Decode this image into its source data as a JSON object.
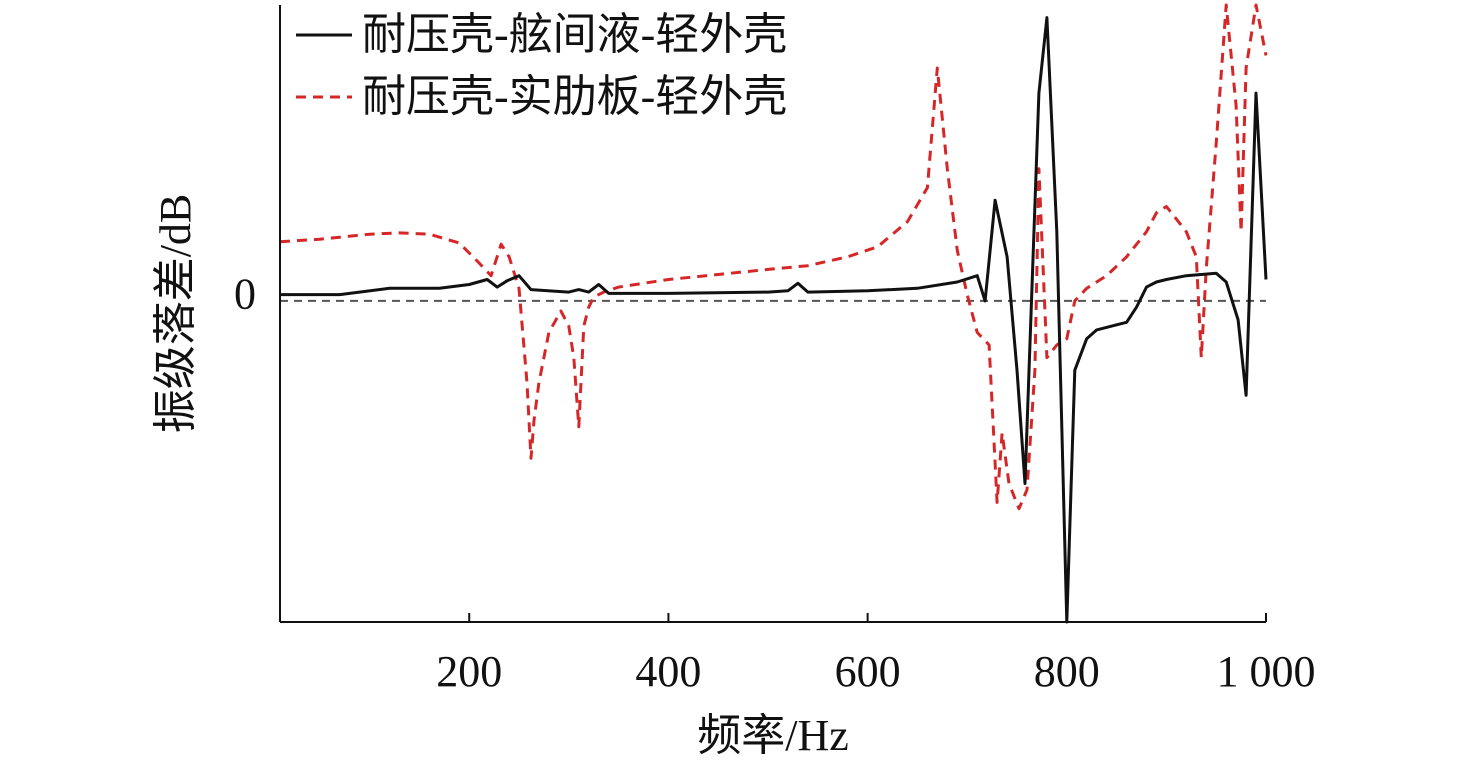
{
  "chart_data": {
    "type": "line",
    "title": "",
    "xlabel": "频率/Hz",
    "ylabel": "振级落差/dB",
    "xlim": [
      10,
      1000
    ],
    "ylim": [
      -26,
      23
    ],
    "x_ticks": [
      {
        "value": 200,
        "label": "200"
      },
      {
        "value": 400,
        "label": "400"
      },
      {
        "value": 600,
        "label": "600"
      },
      {
        "value": 800,
        "label": "800"
      },
      {
        "value": 1000,
        "label": "1 000"
      }
    ],
    "y_ticks": [
      {
        "value": 0,
        "label": "0"
      }
    ],
    "reference_line": {
      "y": -0.5,
      "style": "dashed",
      "color": "#555555"
    },
    "legend": {
      "position": "top-left"
    },
    "grid": false,
    "series": [
      {
        "name": "耐压壳-舷间液-轻外壳",
        "color": "#111111",
        "dash": "solid",
        "x": [
          10,
          70,
          120,
          170,
          200,
          218,
          228,
          238,
          250,
          262,
          300,
          310,
          320,
          330,
          340,
          400,
          500,
          520,
          530,
          540,
          600,
          650,
          690,
          710,
          718,
          728,
          740,
          750,
          758,
          772,
          780,
          790,
          800,
          808,
          820,
          830,
          850,
          860,
          870,
          880,
          890,
          900,
          920,
          950,
          960,
          972,
          980,
          990,
          1000
        ],
        "y": [
          0,
          0,
          0.5,
          0.5,
          0.8,
          1.2,
          0.6,
          1.1,
          1.5,
          0.4,
          0.2,
          0.4,
          0.2,
          0.8,
          0.1,
          0.1,
          0.2,
          0.3,
          0.9,
          0.2,
          0.3,
          0.5,
          1,
          1.5,
          -0.5,
          7.5,
          3,
          -6,
          -15,
          16,
          22,
          5,
          -26,
          -6,
          -3.5,
          -2.8,
          -2.4,
          -2.2,
          -1,
          0.6,
          1,
          1.2,
          1.5,
          1.7,
          1,
          -2,
          -8,
          16,
          1.2
        ]
      },
      {
        "name": "耐压壳-实肋板-轻外壳",
        "color": "#d62728",
        "dash": "dashed",
        "x": [
          10,
          50,
          100,
          130,
          160,
          190,
          210,
          222,
          232,
          240,
          250,
          258,
          262,
          265,
          270,
          280,
          292,
          300,
          305,
          310,
          315,
          320,
          325,
          335,
          350,
          400,
          450,
          500,
          540,
          580,
          610,
          640,
          660,
          670,
          680,
          690,
          700,
          710,
          722,
          730,
          735,
          742,
          752,
          760,
          768,
          772,
          780,
          790,
          800,
          808,
          820,
          840,
          860,
          880,
          890,
          900,
          910,
          920,
          930,
          935,
          940,
          950,
          960,
          970,
          975,
          980,
          990,
          1000
        ],
        "y": [
          4.2,
          4.4,
          4.8,
          4.9,
          4.8,
          4.1,
          2.5,
          1.5,
          4,
          3,
          0.5,
          -7,
          -13,
          -10,
          -7,
          -3,
          -1.3,
          -2.5,
          -5,
          -10.5,
          -2.5,
          -1,
          -0.2,
          0.2,
          0.6,
          1.2,
          1.6,
          2,
          2.3,
          3,
          3.8,
          5.8,
          8.5,
          18,
          10,
          3.5,
          0,
          -3,
          -4,
          -16.5,
          -11,
          -15,
          -17,
          -15.5,
          -6,
          10,
          -5,
          -4,
          -3.5,
          -0.5,
          0.5,
          1.5,
          3,
          5,
          6.5,
          7,
          6,
          5,
          3,
          -5,
          2,
          12,
          23,
          15,
          5,
          18,
          23,
          19
        ]
      }
    ]
  }
}
